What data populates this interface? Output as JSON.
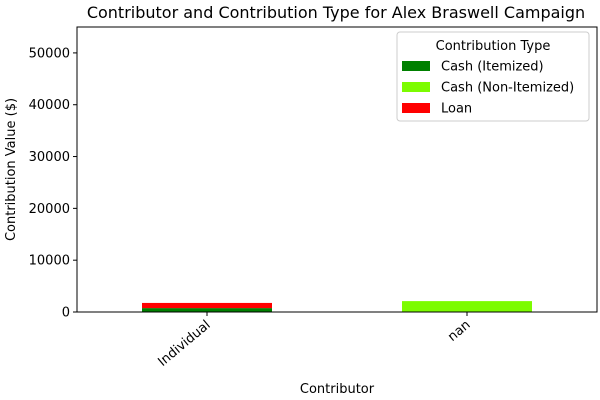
{
  "chart_data": {
    "type": "bar",
    "stacked": true,
    "title": "Contributor and Contribution Type for Alex Braswell Campaign",
    "xlabel": "Contributor",
    "ylabel": "Contribution Value ($)",
    "categories": [
      "Individual",
      "nan"
    ],
    "ylim": [
      0,
      55000
    ],
    "yticks": [
      0,
      10000,
      20000,
      30000,
      40000,
      50000
    ],
    "grid": false,
    "legend": {
      "title": "Contribution Type",
      "placement": "top-right"
    },
    "series": [
      {
        "name": "Cash (Itemized)",
        "color": "#008000",
        "values": [
          750,
          0
        ]
      },
      {
        "name": "Cash (Non-Itemized)",
        "color": "#7CFC00",
        "values": [
          0,
          2100
        ]
      },
      {
        "name": "Loan",
        "color": "#FF0000",
        "values": [
          1000,
          0
        ]
      }
    ]
  }
}
